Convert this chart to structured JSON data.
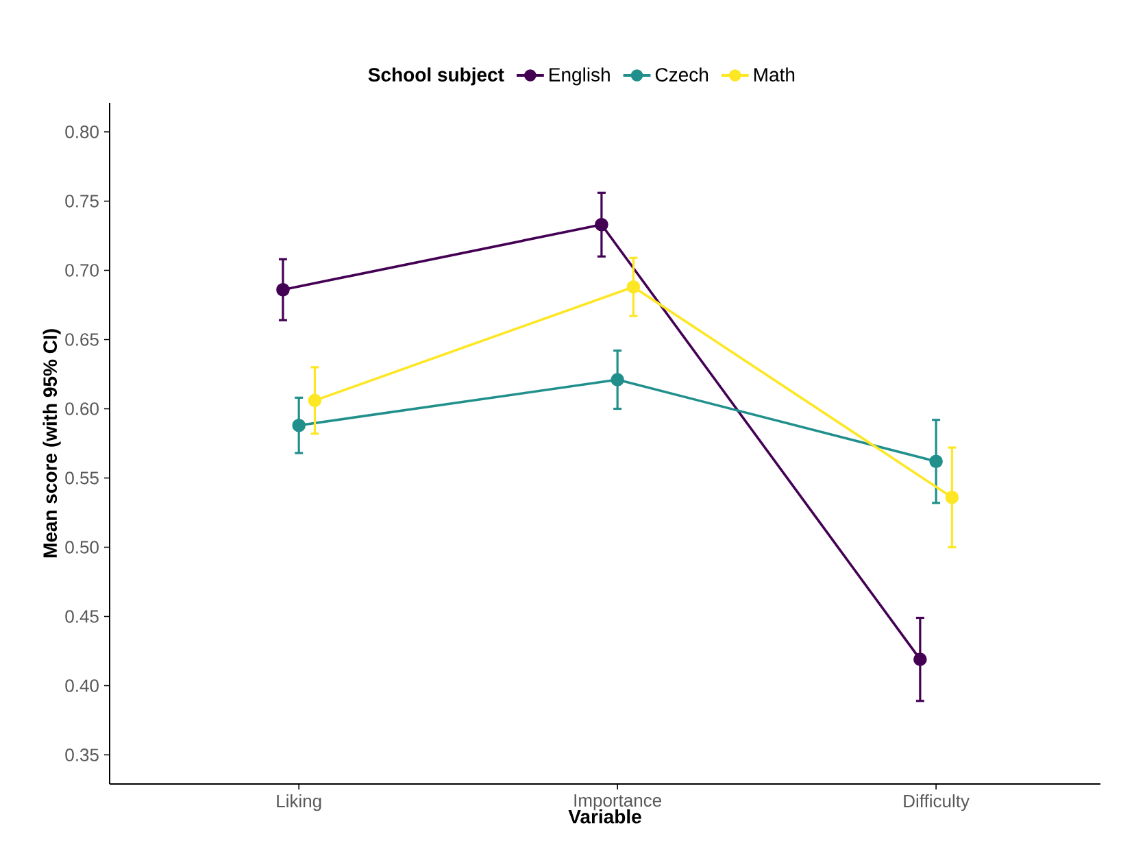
{
  "chart_data": {
    "type": "line",
    "xlabel": "Variable",
    "ylabel": "Mean score (with 95% CI)",
    "legend_title": "School subject",
    "categories": [
      "Liking",
      "Importance",
      "Difficulty"
    ],
    "series": [
      {
        "name": "English",
        "color": "#440154",
        "values": [
          0.686,
          0.733,
          0.419
        ],
        "errors": [
          0.022,
          0.023,
          0.03
        ]
      },
      {
        "name": "Czech",
        "color": "#21908c",
        "values": [
          0.588,
          0.621,
          0.562
        ],
        "errors": [
          0.02,
          0.021,
          0.03
        ]
      },
      {
        "name": "Math",
        "color": "#fde725",
        "values": [
          0.606,
          0.688,
          0.536
        ],
        "errors": [
          0.024,
          0.021,
          0.036
        ]
      }
    ],
    "ylim": [
      0.329,
      0.821
    ],
    "yticks": [
      0.35,
      {
        "value": 0.4,
        "label": "0.40"
      },
      0.45,
      {
        "value": 0.5,
        "label": "0.50"
      },
      0.55,
      {
        "value": 0.6,
        "label": "0.60"
      },
      0.65,
      {
        "value": 0.7,
        "label": "0.70"
      },
      0.75,
      {
        "value": 0.8,
        "label": "0.80"
      }
    ],
    "grid": false,
    "legend": "top",
    "marker": "circle",
    "line_style": "solid"
  }
}
